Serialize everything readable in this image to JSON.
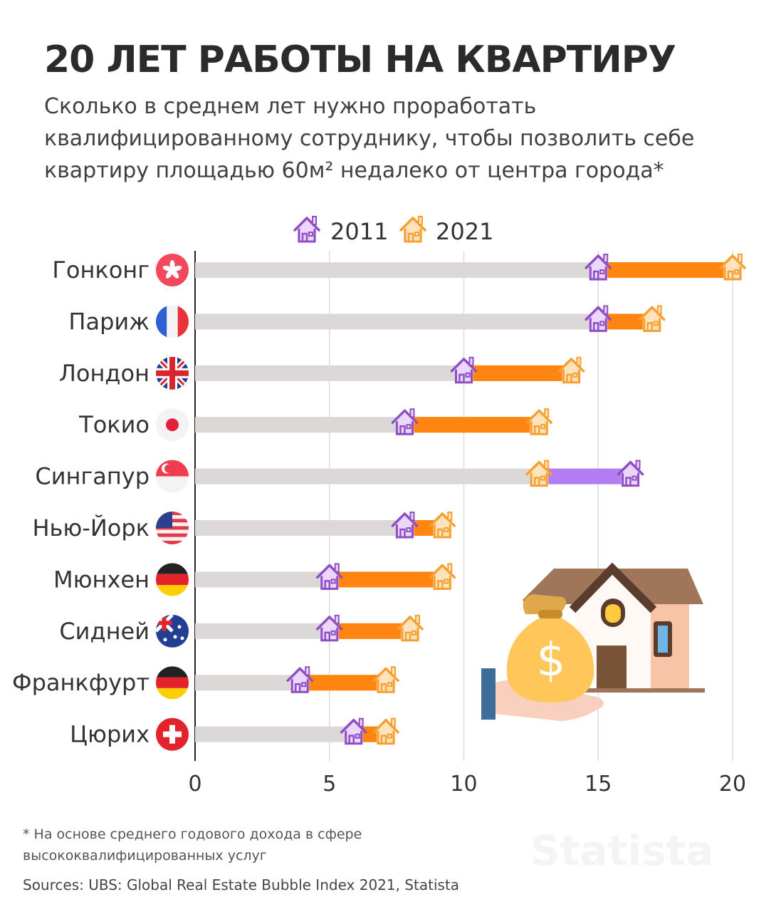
{
  "title": "20 ЛЕТ РАБОТЫ НА КВАРТИРУ",
  "subtitle_lines": [
    "Сколько в среднем лет нужно проработать",
    "квалифицированному сотруднику, чтобы позволить себе",
    "квартиру площадью 60м² недалеко от центра города*"
  ],
  "footnote_lines": [
    "* На основе среднего годового дохода в сфере",
    "высококвалифицированных услуг"
  ],
  "source": "Sources: UBS: Global Real Estate Bubble Index 2021, Statista",
  "watermark": "Statista",
  "colors": {
    "c2011": "#8e4fc4",
    "c2011_fill": "#ead7fb",
    "c2021": "#f5a030",
    "c2021_fill": "#ffe3bf",
    "increase": "#ff8410",
    "decrease": "#b37ef2",
    "track": "#dcd8d8",
    "grid": "#dddddd"
  },
  "chart_data": {
    "type": "dumbbell",
    "title": "20 ЛЕТ РАБОТЫ НА КВАРТИРУ",
    "legend": [
      "2011",
      "2021"
    ],
    "legend_position": "top-center",
    "xlim": [
      0,
      20
    ],
    "xticks": [
      0,
      5,
      10,
      15,
      20
    ],
    "grid": true,
    "categories": [
      {
        "city": "Гонконг",
        "flag": "hong-kong",
        "y2011": 15.0,
        "y2021": 20.0
      },
      {
        "city": "Париж",
        "flag": "france",
        "y2011": 15.0,
        "y2021": 17.0
      },
      {
        "city": "Лондон",
        "flag": "uk",
        "y2011": 10.0,
        "y2021": 14.0
      },
      {
        "city": "Токио",
        "flag": "japan",
        "y2011": 7.8,
        "y2021": 12.8
      },
      {
        "city": "Сингапур",
        "flag": "singapore",
        "y2011": 16.2,
        "y2021": 12.8
      },
      {
        "city": "Нью-Йорк",
        "flag": "usa",
        "y2011": 7.8,
        "y2021": 9.2
      },
      {
        "city": "Мюнхен",
        "flag": "germany",
        "y2011": 5.0,
        "y2021": 9.2
      },
      {
        "city": "Сидней",
        "flag": "australia",
        "y2011": 5.0,
        "y2021": 8.0
      },
      {
        "city": "Франкфурт",
        "flag": "germany",
        "y2011": 3.9,
        "y2021": 7.1
      },
      {
        "city": "Цюрих",
        "flag": "switzerland",
        "y2011": 5.9,
        "y2021": 7.1
      }
    ]
  }
}
